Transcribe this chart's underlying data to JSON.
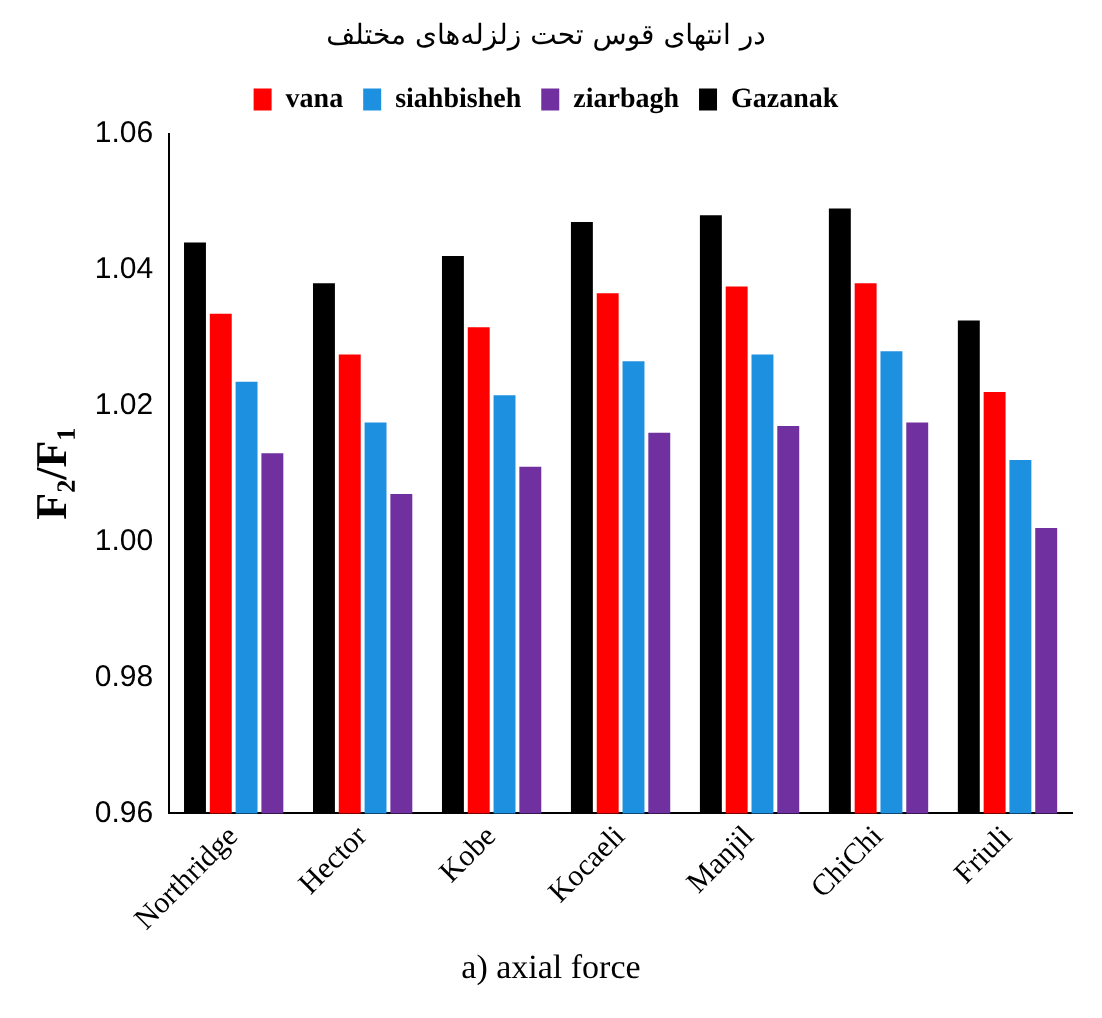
{
  "chart_data": {
    "type": "bar",
    "title": "در انتهای قوس تحت زلزله‌های مختلف",
    "ylabel": "F₂/F₁",
    "categories": [
      "Northridge",
      "Hector",
      "Kobe",
      "Kocaeli",
      "Manjil",
      "ChiChi",
      "Friuli"
    ],
    "series": [
      {
        "name": "Gazanak",
        "color": "#000000",
        "values": [
          1.044,
          1.038,
          1.042,
          1.047,
          1.048,
          1.049,
          1.0325
        ]
      },
      {
        "name": "vana",
        "color": "#ff0000",
        "values": [
          1.0335,
          1.0275,
          1.0315,
          1.0365,
          1.0375,
          1.038,
          1.022
        ]
      },
      {
        "name": "siahbisheh",
        "color": "#1e90e0",
        "values": [
          1.0235,
          1.0175,
          1.0215,
          1.0265,
          1.0275,
          1.028,
          1.012
        ]
      },
      {
        "name": "ziarbagh",
        "color": "#7030a0",
        "values": [
          1.013,
          1.007,
          1.011,
          1.016,
          1.017,
          1.0175,
          1.002
        ]
      }
    ],
    "ylim": [
      0.96,
      1.06
    ],
    "yticks": [
      0.96,
      0.98,
      {
        "value": 1.0,
        "label": "1.00"
      },
      1.02,
      1.04,
      1.06
    ],
    "grid": false,
    "legend": "top",
    "annotations": [
      "a) axial force"
    ]
  }
}
